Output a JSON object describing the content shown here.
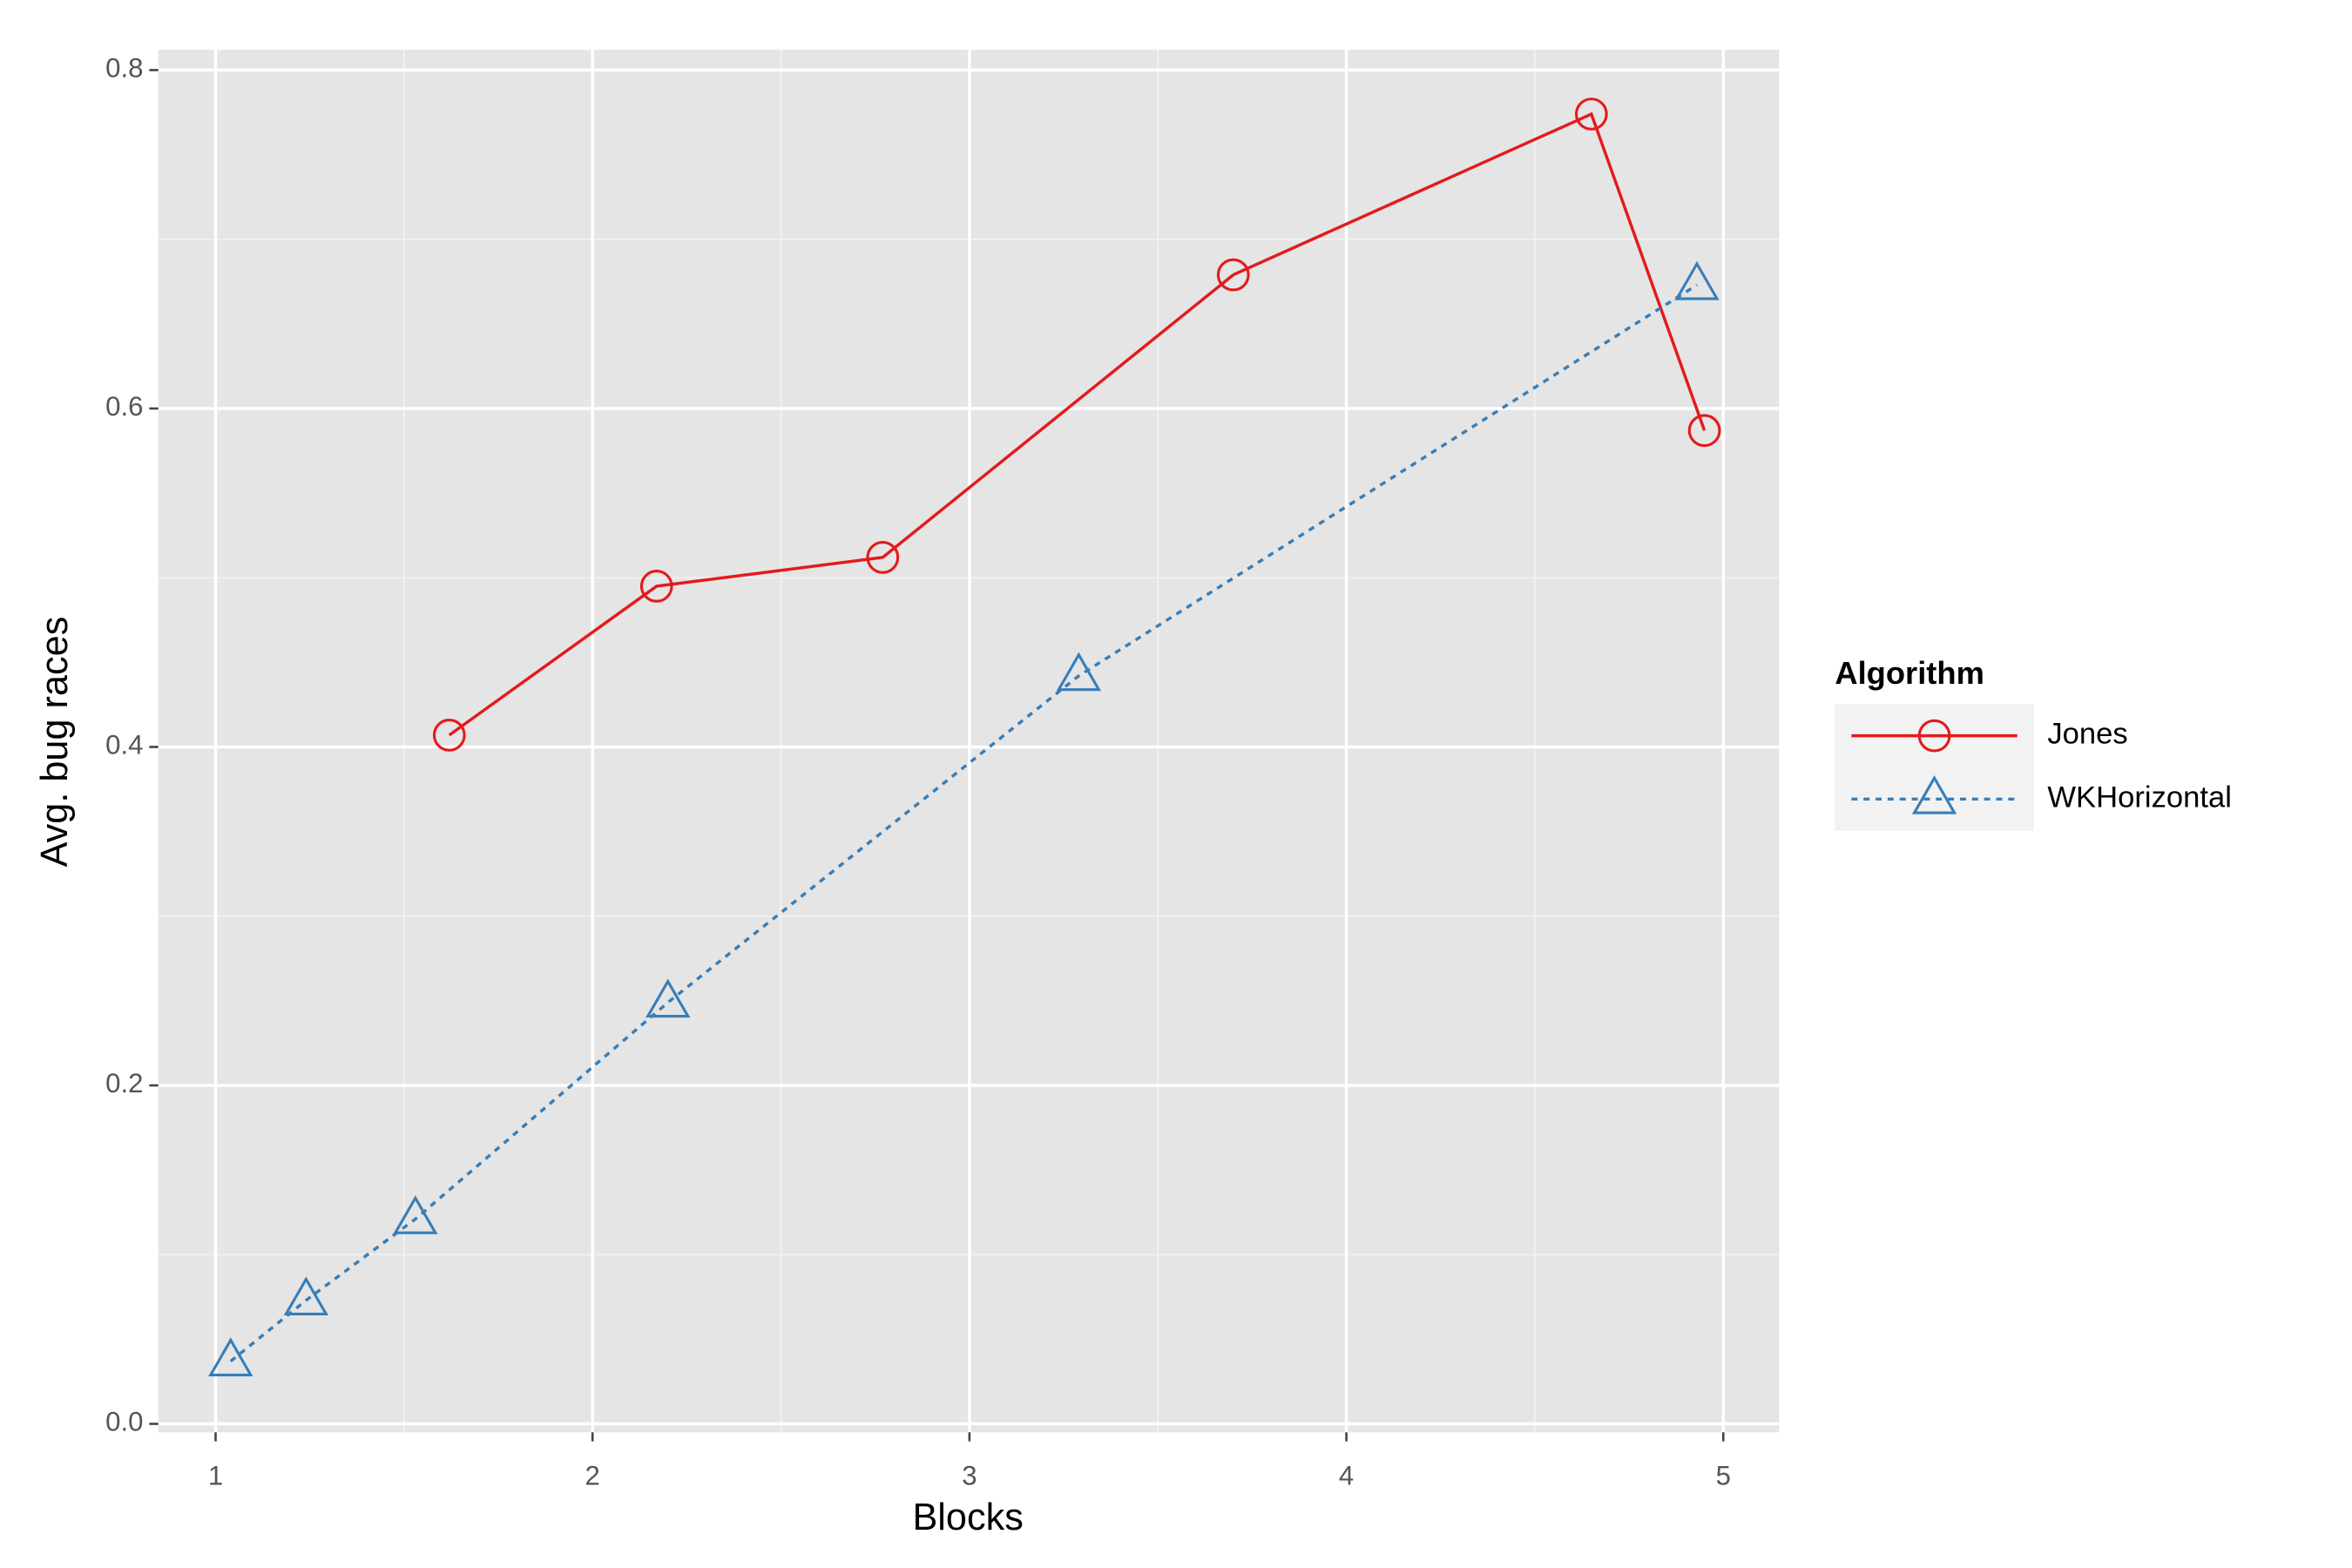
{
  "chart_data": {
    "type": "line",
    "x_label": "Blocks",
    "y_label": "Avg. bug races",
    "legend_title": "Algorithm",
    "legend_position": "right",
    "xlim": [
      0.848,
      5.148
    ],
    "ylim": [
      -0.005,
      0.812
    ],
    "xticks": [
      1,
      2,
      3,
      4,
      5
    ],
    "yticks": [
      {
        "value": 0,
        "label": "0.0"
      },
      0.2,
      0.4,
      0.6,
      0.8
    ],
    "grid": true,
    "minor_grid": true,
    "series": [
      {
        "name": "Jones",
        "color": "#e41a1c",
        "linestyle": "solid",
        "marker": "circle",
        "x": [
          1.62,
          2.17,
          2.77,
          3.7,
          4.65,
          4.95
        ],
        "values": [
          0.407,
          0.495,
          0.512,
          0.679,
          0.774,
          0.587
        ]
      },
      {
        "name": "WKHorizontal",
        "color": "#377eb8",
        "linestyle": "dashed",
        "marker": "triangle",
        "x": [
          1.04,
          1.24,
          1.53,
          2.2,
          3.29,
          4.93
        ],
        "values": [
          0.037,
          0.073,
          0.121,
          0.249,
          0.442,
          0.673
        ]
      }
    ]
  }
}
